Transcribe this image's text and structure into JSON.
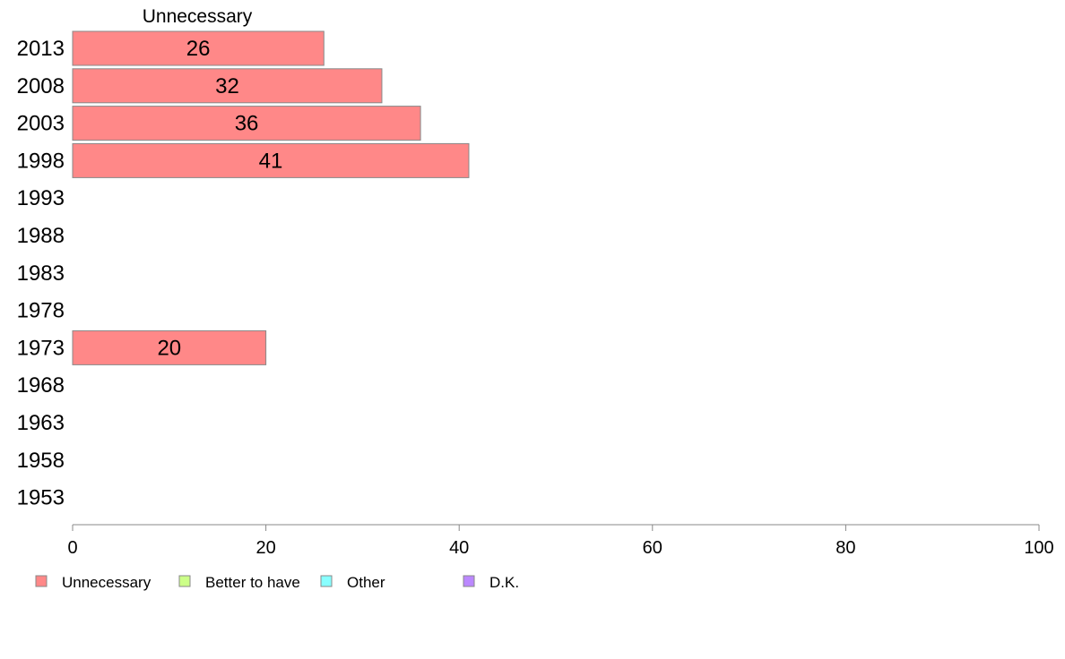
{
  "chart_data": {
    "type": "bar",
    "orientation": "horizontal",
    "categories": [
      "2013",
      "2008",
      "2003",
      "1998",
      "1993",
      "1988",
      "1983",
      "1978",
      "1973",
      "1968",
      "1963",
      "1958",
      "1953"
    ],
    "series": [
      {
        "name": "Unnecessary",
        "color": "#ff8888",
        "values": [
          26,
          32,
          36,
          41,
          null,
          null,
          null,
          null,
          20,
          null,
          null,
          null,
          null
        ],
        "labels": [
          "26",
          "32",
          "36",
          "41",
          "",
          "",
          "",
          "",
          "20",
          "",
          "",
          "",
          ""
        ]
      }
    ],
    "series_title": "Unnecessary",
    "xlim": [
      0,
      100
    ],
    "x_ticks": [
      0,
      20,
      40,
      60,
      80,
      100
    ],
    "x_tick_labels": [
      "0",
      "20",
      "40",
      "60",
      "80",
      "100"
    ],
    "grid": false,
    "legend": {
      "placement": "bottom-left",
      "entries": [
        {
          "label": "Unnecessary",
          "color": "#ff8888"
        },
        {
          "label": "Better to have",
          "color": "#ccff88"
        },
        {
          "label": "Other",
          "color": "#88ffff"
        },
        {
          "label": "D.K.",
          "color": "#bb88ff"
        }
      ]
    }
  }
}
